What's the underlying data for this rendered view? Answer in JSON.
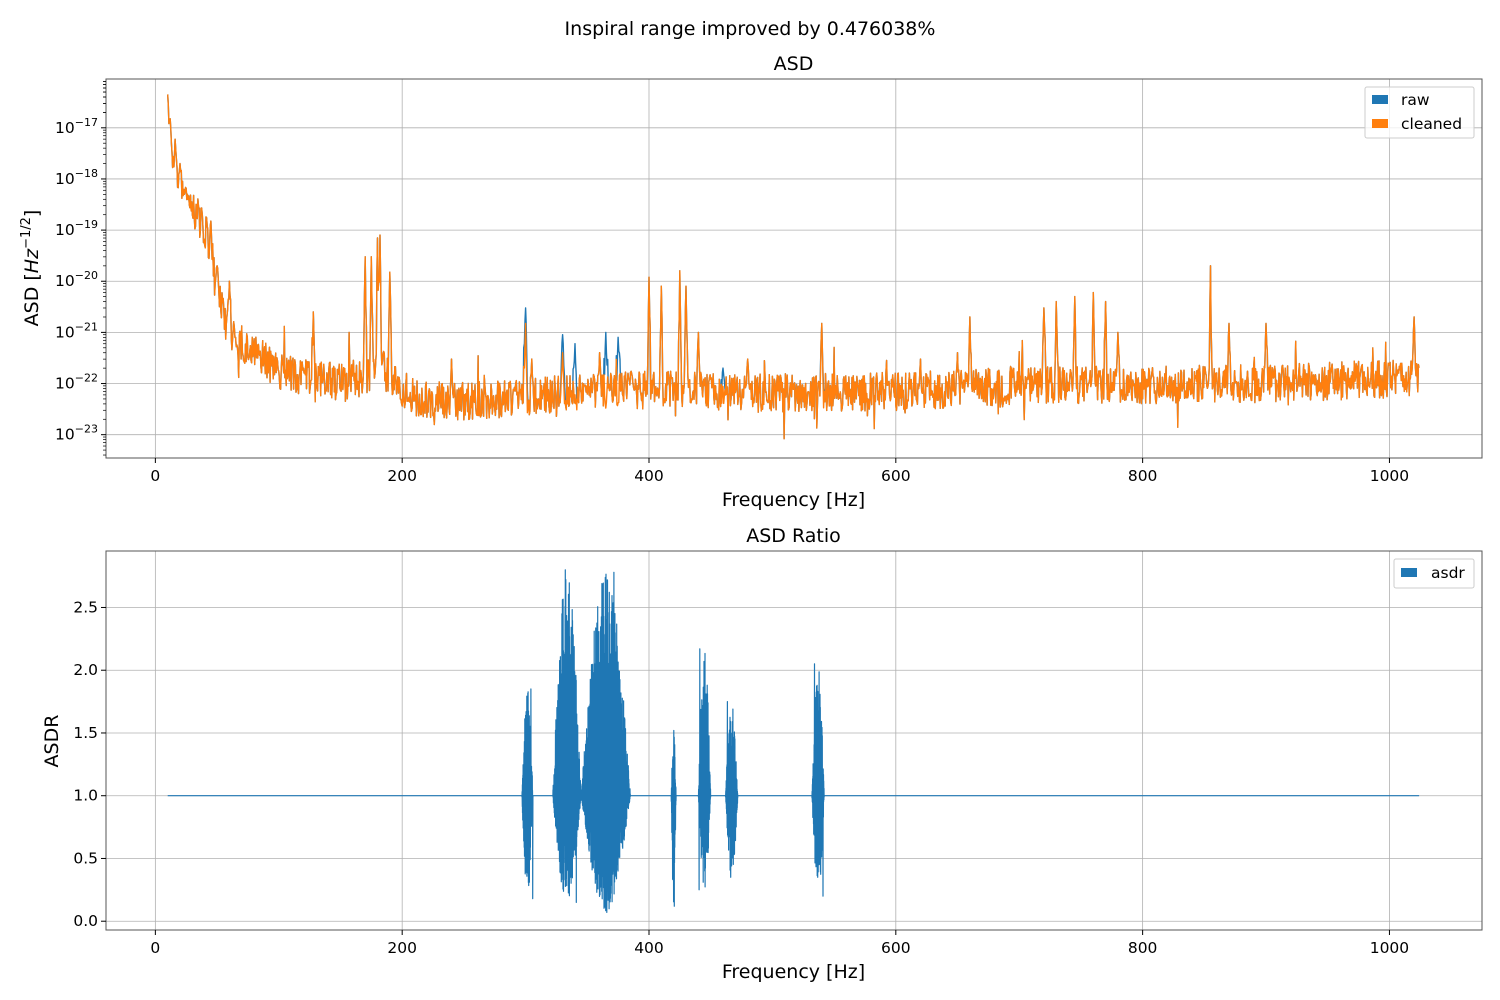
{
  "figure": {
    "suptitle": "Inspiral range improved by 0.476038%"
  },
  "chart_data": [
    {
      "type": "line",
      "title": "ASD",
      "xlabel": "Frequency [Hz]",
      "ylabel_prefix": "ASD [",
      "ylabel_base": "Hz",
      "ylabel_exp": "−1/2",
      "ylabel_suffix": "]",
      "yscale": "log",
      "xlim": [
        -40,
        1075
      ],
      "ylim": [
        3.5e-24,
        9e-17
      ],
      "xticks": [
        0,
        200,
        400,
        600,
        800,
        1000
      ],
      "xtick_labels": [
        "0",
        "200",
        "400",
        "600",
        "800",
        "1000"
      ],
      "yticks_exp": [
        -17,
        -18,
        -19,
        -20,
        -21,
        -22,
        -23
      ],
      "ytick_base": "10",
      "ytick_exp_labels": [
        "−17",
        "−18",
        "−19",
        "−20",
        "−21",
        "−22",
        "−23"
      ],
      "grid": true,
      "legend_position": "top-right",
      "series": [
        {
          "name": "raw",
          "color": "#1f77b4"
        },
        {
          "name": "cleaned",
          "color": "#ff7f0e"
        }
      ],
      "x_range": [
        10,
        1024
      ],
      "floor_points": [
        [
          10,
          6e-18
        ],
        [
          15,
          1.5e-18
        ],
        [
          20,
          6e-19
        ],
        [
          30,
          2.5e-19
        ],
        [
          40,
          1.2e-19
        ],
        [
          50,
          6e-21
        ],
        [
          60,
          1.1e-21
        ],
        [
          80,
          4e-22
        ],
        [
          100,
          1.8e-22
        ],
        [
          120,
          1.3e-22
        ],
        [
          150,
          1.1e-22
        ],
        [
          170,
          1.4e-22
        ],
        [
          180,
          2.5e-22
        ],
        [
          195,
          1e-22
        ],
        [
          210,
          5e-23
        ],
        [
          250,
          4.5e-23
        ],
        [
          300,
          5.5e-23
        ],
        [
          340,
          7e-23
        ],
        [
          400,
          7.5e-23
        ],
        [
          500,
          6.5e-23
        ],
        [
          600,
          7e-23
        ],
        [
          700,
          9e-23
        ],
        [
          800,
          9.5e-23
        ],
        [
          900,
          1e-22
        ],
        [
          1024,
          1.3e-22
        ]
      ],
      "peaks": [
        [
          10,
          4.5e-17
        ],
        [
          12,
          1.5e-17
        ],
        [
          16,
          6e-18
        ],
        [
          20,
          2e-18
        ],
        [
          26,
          5e-19
        ],
        [
          35,
          7e-20
        ],
        [
          45,
          1.5e-19
        ],
        [
          50,
          2e-20
        ],
        [
          60,
          1e-20
        ],
        [
          64,
          1e-21
        ],
        [
          120,
          2e-22
        ],
        [
          128,
          2.5e-21
        ],
        [
          170,
          3e-20
        ],
        [
          175,
          3e-20
        ],
        [
          180,
          7e-20
        ],
        [
          182,
          8e-20
        ],
        [
          190,
          1.5e-20
        ],
        [
          240,
          3e-22
        ],
        [
          300,
          1.5e-21
        ],
        [
          305,
          3e-22
        ],
        [
          330,
          4e-22
        ],
        [
          360,
          4e-22
        ],
        [
          400,
          1.2e-20
        ],
        [
          410,
          8e-21
        ],
        [
          425,
          1.6e-20
        ],
        [
          430,
          8e-21
        ],
        [
          440,
          1e-21
        ],
        [
          480,
          3e-22
        ],
        [
          540,
          1.5e-21
        ],
        [
          620,
          3e-22
        ],
        [
          650,
          4e-22
        ],
        [
          660,
          2e-21
        ],
        [
          720,
          3e-21
        ],
        [
          730,
          4e-21
        ],
        [
          745,
          5e-21
        ],
        [
          760,
          6e-21
        ],
        [
          770,
          4e-21
        ],
        [
          780,
          1e-21
        ],
        [
          855,
          2e-20
        ],
        [
          870,
          1.5e-21
        ],
        [
          900,
          1.5e-21
        ],
        [
          1020,
          2e-21
        ]
      ],
      "raw_bumps": [
        [
          300,
          3e-21
        ],
        [
          330,
          9e-22
        ],
        [
          340,
          6e-22
        ],
        [
          365,
          1e-21
        ],
        [
          375,
          8e-22
        ],
        [
          460,
          2e-22
        ],
        [
          540,
          3e-22
        ]
      ]
    },
    {
      "type": "line",
      "title": "ASD Ratio",
      "xlabel": "Frequency [Hz]",
      "ylabel": "ASDR",
      "xlim": [
        -40,
        1075
      ],
      "ylim": [
        -0.07,
        2.95
      ],
      "xticks": [
        0,
        200,
        400,
        600,
        800,
        1000
      ],
      "xtick_labels": [
        "0",
        "200",
        "400",
        "600",
        "800",
        "1000"
      ],
      "yticks": [
        0.0,
        0.5,
        1.0,
        1.5,
        2.0,
        2.5
      ],
      "ytick_labels": [
        "0.0",
        "0.5",
        "1.0",
        "1.5",
        "2.0",
        "2.5"
      ],
      "grid": true,
      "legend_position": "top-right",
      "series": [
        {
          "name": "asdr",
          "color": "#1f77b4"
        }
      ],
      "x_range": [
        10,
        1024
      ],
      "baseline": 1.0,
      "bursts": [
        {
          "x": [
            297,
            306
          ],
          "min": 0.18,
          "max": 1.85
        },
        {
          "x": [
            322,
            345
          ],
          "min": 0.15,
          "max": 2.8
        },
        {
          "x": [
            345,
            385
          ],
          "min": 0.07,
          "max": 2.78
        },
        {
          "x": [
            418,
            422
          ],
          "min": 0.12,
          "max": 1.52
        },
        {
          "x": [
            440,
            450
          ],
          "min": 0.25,
          "max": 2.17
        },
        {
          "x": [
            462,
            472
          ],
          "min": 0.35,
          "max": 1.75
        },
        {
          "x": [
            532,
            542
          ],
          "min": 0.2,
          "max": 2.05
        }
      ]
    }
  ]
}
